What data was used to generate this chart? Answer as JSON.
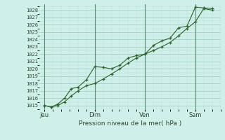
{
  "title": "Pression niveau de la mer( hPa )",
  "bg_color": "#cff0e8",
  "grid_major_color": "#99ccbb",
  "grid_minor_color": "#bbddd5",
  "line_color": "#2d6030",
  "ylim": [
    1014.5,
    1028.8
  ],
  "yticks": [
    1015,
    1016,
    1017,
    1018,
    1019,
    1020,
    1021,
    1022,
    1023,
    1024,
    1025,
    1026,
    1027,
    1028
  ],
  "xtick_labels": [
    "Jeu",
    "Dim",
    "Ven",
    "Sam"
  ],
  "xtick_positions": [
    0.0,
    3.0,
    6.0,
    9.0
  ],
  "vline_positions": [
    0.0,
    3.0,
    6.0,
    9.0
  ],
  "xlim": [
    -0.3,
    10.5
  ],
  "series1_x": [
    0.0,
    0.4,
    0.8,
    1.2,
    1.6,
    2.0,
    2.5,
    3.0,
    3.5,
    4.0,
    4.5,
    5.0,
    5.5,
    6.0,
    6.5,
    7.0,
    7.5,
    8.0,
    8.5,
    9.0,
    9.5,
    10.0
  ],
  "series1_y": [
    1015.0,
    1014.8,
    1015.0,
    1015.5,
    1016.3,
    1017.0,
    1017.7,
    1018.0,
    1018.6,
    1019.3,
    1020.0,
    1020.8,
    1021.5,
    1022.0,
    1022.5,
    1023.0,
    1023.6,
    1024.5,
    1025.5,
    1026.4,
    1028.2,
    1028.0
  ],
  "series2_x": [
    0.0,
    0.4,
    0.8,
    1.2,
    1.6,
    2.0,
    2.5,
    3.0,
    3.5,
    4.0,
    4.5,
    5.0,
    5.5,
    6.0,
    6.5,
    7.0,
    7.5,
    8.0,
    8.5,
    9.0,
    9.5,
    10.0
  ],
  "series2_y": [
    1015.0,
    1014.8,
    1015.2,
    1016.0,
    1017.3,
    1017.5,
    1018.5,
    1020.3,
    1020.2,
    1020.0,
    1020.5,
    1021.5,
    1021.8,
    1022.0,
    1023.2,
    1023.8,
    1024.2,
    1025.6,
    1025.8,
    1028.4,
    1028.3,
    1028.2
  ]
}
